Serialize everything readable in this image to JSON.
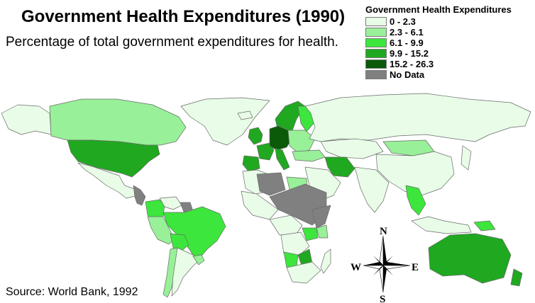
{
  "title": "Government Health Expenditures (1990)",
  "subtitle": "Percentage of total government expenditures for health.",
  "source": "Source: World Bank, 1992",
  "legend": {
    "title": "Government Health Expenditures",
    "items": [
      {
        "label": "0 - 2.3",
        "color": "#e8fce8"
      },
      {
        "label": "2.3 - 6.1",
        "color": "#98f098"
      },
      {
        "label": "6.1 - 9.9",
        "color": "#3ce63c"
      },
      {
        "label": "9.9 - 15.2",
        "color": "#20a820"
      },
      {
        "label": "15.2 - 26.3",
        "color": "#0a5a0a"
      },
      {
        "label": "No Data",
        "color": "#808080"
      }
    ]
  },
  "compass": {
    "n": "N",
    "s": "S",
    "e": "E",
    "w": "W"
  },
  "colors": {
    "ocean": "#ffffff",
    "border": "#6a6a6a"
  },
  "regions": {
    "greenland": "0 - 2.3",
    "alaska": "0 - 2.3",
    "canada": "2.3 - 6.1",
    "usa": "9.9 - 15.2",
    "mexico": "0 - 2.3",
    "central_america": "No Data",
    "colombia": "6.1 - 9.9",
    "venezuela": "0 - 2.3",
    "guyana": "No Data",
    "brazil": "6.1 - 9.9",
    "peru": "2.3 - 6.1",
    "bolivia": "6.1 - 9.9",
    "chile": "2.3 - 6.1",
    "argentina": "0 - 2.3",
    "uruguay": "2.3 - 6.1",
    "iceland": "0 - 2.3",
    "norway_sweden": "9.9 - 15.2",
    "finland": "6.1 - 9.9",
    "uk_ireland": "9.9 - 15.2",
    "france": "9.9 - 15.2",
    "germany_central": "15.2 - 26.3",
    "iberia": "9.9 - 15.2",
    "italy": "9.9 - 15.2",
    "eastern_europe": "2.3 - 6.1",
    "russia": "0 - 2.3",
    "kazakhstan": "0 - 2.3",
    "turkey": "2.3 - 6.1",
    "iran": "9.9 - 15.2",
    "arabia": "0 - 2.3",
    "mongolia": "2.3 - 6.1",
    "china": "0 - 2.3",
    "india": "0 - 2.3",
    "southeast_asia": "6.1 - 9.9",
    "indonesia": "0 - 2.3",
    "png": "6.1 - 9.9",
    "japan": "0 - 2.3",
    "australia": "9.9 - 15.2",
    "new_zealand": "9.9 - 15.2",
    "north_africa": "0 - 2.3",
    "algeria": "No Data",
    "egypt": "2.3 - 6.1",
    "sahel": "No Data",
    "west_africa": "0 - 2.3",
    "central_africa": "0 - 2.3",
    "east_africa": "No Data",
    "zaire_angola": "0 - 2.3",
    "tanzania": "6.1 - 9.9",
    "namibia": "6.1 - 9.9",
    "botswana": "9.9 - 15.2",
    "south_africa": "0 - 2.3",
    "madagascar": "0 - 2.3",
    "kenya": "2.3 - 6.1"
  }
}
